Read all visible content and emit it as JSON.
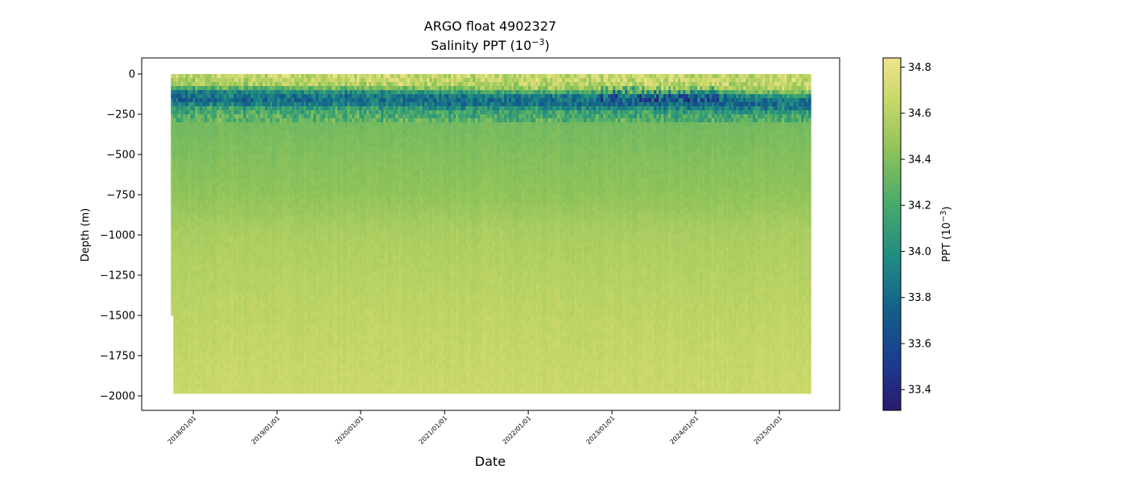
{
  "chart_data": {
    "type": "heatmap",
    "title": "ARGO float 4902327",
    "subtitle": {
      "base": "Salinity PPT (10",
      "exp": "−3",
      "close": ")"
    },
    "xlabel": "Date",
    "ylabel": "Depth (m)",
    "x_ticks": [
      "2018/01/01",
      "2019/01/01",
      "2020/01/01",
      "2021/01/01",
      "2022/01/01",
      "2023/01/01",
      "2024/01/01",
      "2025/01/01"
    ],
    "x_range": [
      "2017/10/01",
      "2025/05/10"
    ],
    "y_ticks": [
      0,
      -250,
      -500,
      -750,
      -1000,
      -1250,
      -1500,
      -1750,
      -2000
    ],
    "y_tick_labels": [
      "0",
      "−250",
      "−500",
      "−750",
      "−1000",
      "−1250",
      "−1500",
      "−1750",
      "−2000"
    ],
    "ylim": [
      -2090,
      95
    ],
    "colorbar": {
      "label": {
        "base": "PPT (10",
        "exp": "−3",
        "close": ")"
      },
      "range": [
        33.31,
        34.84
      ],
      "ticks": [
        33.4,
        33.6,
        33.8,
        34.0,
        34.2,
        34.4,
        34.6,
        34.8
      ],
      "tick_labels": [
        "33.4",
        "33.6",
        "33.8",
        "34.0",
        "34.2",
        "34.4",
        "34.6",
        "34.8"
      ],
      "colormap": "haline"
    },
    "data_start": "2017/09/25",
    "data_end": "2025/05/10",
    "profile_max_depth": -1985,
    "early_profile_max_depth": -1500,
    "salinity_by_depth": [
      {
        "depth": 0,
        "salinity": 34.65
      },
      {
        "depth": -50,
        "salinity": 34.55
      },
      {
        "depth": -100,
        "salinity": 33.9
      },
      {
        "depth": -150,
        "salinity": 33.8
      },
      {
        "depth": -200,
        "salinity": 34.15
      },
      {
        "depth": -300,
        "salinity": 34.35
      },
      {
        "depth": -500,
        "salinity": 34.4
      },
      {
        "depth": -750,
        "salinity": 34.45
      },
      {
        "depth": -1000,
        "salinity": 34.55
      },
      {
        "depth": -1500,
        "salinity": 34.62
      },
      {
        "depth": -2000,
        "salinity": 34.67
      }
    ],
    "grid": false,
    "legend": "colorbar-right"
  }
}
